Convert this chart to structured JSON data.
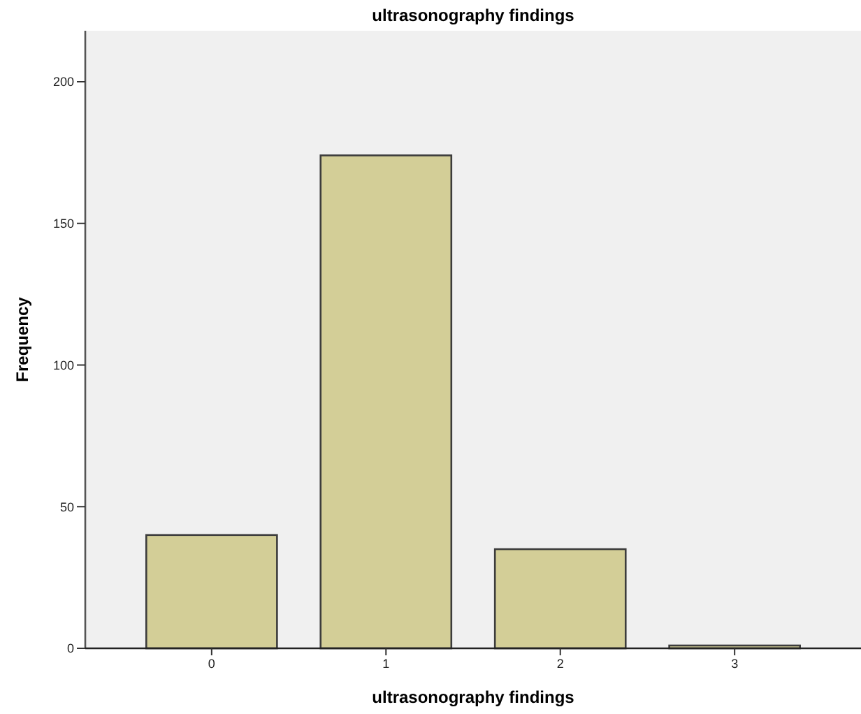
{
  "chart_data": {
    "type": "bar",
    "title": "ultrasonography findings",
    "xlabel": "ultrasonography findings",
    "ylabel": "Frequency",
    "categories": [
      "0",
      "1",
      "2",
      "3"
    ],
    "values": [
      40,
      174,
      35,
      1
    ],
    "color": "#d3ce97",
    "ylim": [
      0,
      218
    ],
    "yticks": [
      0,
      50,
      100,
      150,
      200
    ],
    "grid": false
  }
}
